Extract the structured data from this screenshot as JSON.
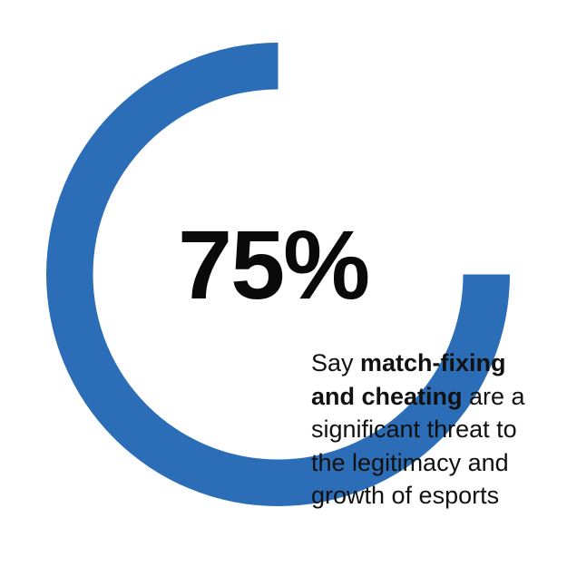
{
  "chart_data": {
    "type": "pie",
    "style": "donut-gauge",
    "value": 75,
    "value_label": "75%",
    "max": 100,
    "fill_color": "#2b6db6",
    "track_color": "#ffffff"
  },
  "caption": {
    "lines": [
      {
        "normal_before": "Say ",
        "bold": "match-fixing",
        "normal_after": ""
      },
      {
        "normal_before": "",
        "bold": "and cheating",
        "normal_after": " are a"
      },
      {
        "normal_before": "significant threat to",
        "bold": "",
        "normal_after": ""
      },
      {
        "normal_before": "the legitimacy and",
        "bold": "",
        "normal_after": ""
      },
      {
        "normal_before": "growth of esports",
        "bold": "",
        "normal_after": ""
      }
    ]
  }
}
